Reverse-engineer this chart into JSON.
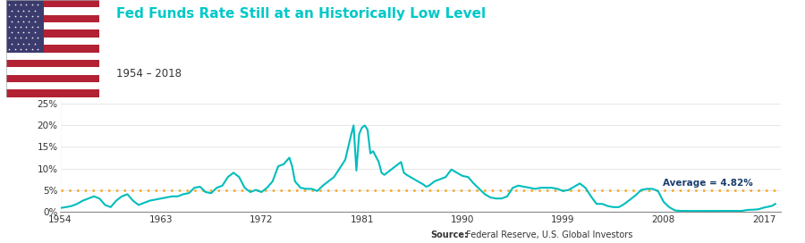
{
  "title": "Fed Funds Rate Still at an Historically Low Level",
  "subtitle": "1954 – 2018",
  "title_color": "#00C8C8",
  "subtitle_color": "#333333",
  "line_color": "#00BDBD",
  "avg_line_color": "#F5A623",
  "avg_value": 4.82,
  "avg_label": "Average = 4.82%",
  "avg_label_color": "#1A3C6E",
  "source_bold": "Source:",
  "source_rest": " Federal Reserve, U.S. Global Investors",
  "yticks": [
    0,
    5,
    10,
    15,
    20,
    25
  ],
  "ytick_labels": [
    "0%",
    "5%",
    "10%",
    "15%",
    "20%",
    "25%"
  ],
  "xticks": [
    1954,
    1963,
    1972,
    1981,
    1990,
    1999,
    2008,
    2017
  ],
  "xlim": [
    1954,
    2018.5
  ],
  "ylim": [
    0,
    26
  ],
  "background_color": "#FFFFFF",
  "line_width": 1.5,
  "fed_funds_data": [
    [
      1954.0,
      0.8
    ],
    [
      1954.5,
      1.0
    ],
    [
      1955.0,
      1.25
    ],
    [
      1955.5,
      1.75
    ],
    [
      1956.0,
      2.5
    ],
    [
      1956.5,
      3.0
    ],
    [
      1957.0,
      3.5
    ],
    [
      1957.5,
      3.0
    ],
    [
      1958.0,
      1.5
    ],
    [
      1958.5,
      1.0
    ],
    [
      1959.0,
      2.5
    ],
    [
      1959.5,
      3.5
    ],
    [
      1960.0,
      4.0
    ],
    [
      1960.5,
      2.5
    ],
    [
      1961.0,
      1.5
    ],
    [
      1961.5,
      2.0
    ],
    [
      1962.0,
      2.5
    ],
    [
      1962.5,
      2.75
    ],
    [
      1963.0,
      3.0
    ],
    [
      1963.5,
      3.25
    ],
    [
      1964.0,
      3.5
    ],
    [
      1964.5,
      3.5
    ],
    [
      1965.0,
      4.0
    ],
    [
      1965.5,
      4.25
    ],
    [
      1966.0,
      5.5
    ],
    [
      1966.5,
      5.75
    ],
    [
      1967.0,
      4.5
    ],
    [
      1967.5,
      4.25
    ],
    [
      1968.0,
      5.5
    ],
    [
      1968.5,
      6.0
    ],
    [
      1969.0,
      8.0
    ],
    [
      1969.5,
      9.0
    ],
    [
      1970.0,
      8.0
    ],
    [
      1970.5,
      5.5
    ],
    [
      1971.0,
      4.5
    ],
    [
      1971.5,
      5.0
    ],
    [
      1972.0,
      4.5
    ],
    [
      1972.5,
      5.5
    ],
    [
      1973.0,
      7.0
    ],
    [
      1973.5,
      10.5
    ],
    [
      1974.0,
      11.0
    ],
    [
      1974.5,
      12.5
    ],
    [
      1974.75,
      10.5
    ],
    [
      1975.0,
      7.0
    ],
    [
      1975.5,
      5.5
    ],
    [
      1976.0,
      5.25
    ],
    [
      1976.5,
      5.25
    ],
    [
      1977.0,
      4.75
    ],
    [
      1977.5,
      6.0
    ],
    [
      1978.0,
      7.0
    ],
    [
      1978.5,
      8.0
    ],
    [
      1979.0,
      10.0
    ],
    [
      1979.5,
      12.0
    ],
    [
      1980.0,
      17.5
    ],
    [
      1980.25,
      20.0
    ],
    [
      1980.5,
      9.5
    ],
    [
      1980.75,
      18.0
    ],
    [
      1981.0,
      19.5
    ],
    [
      1981.25,
      20.0
    ],
    [
      1981.5,
      19.0
    ],
    [
      1981.75,
      13.5
    ],
    [
      1982.0,
      14.0
    ],
    [
      1982.5,
      11.5
    ],
    [
      1982.75,
      9.0
    ],
    [
      1983.0,
      8.5
    ],
    [
      1983.5,
      9.5
    ],
    [
      1984.0,
      10.5
    ],
    [
      1984.5,
      11.5
    ],
    [
      1984.75,
      9.0
    ],
    [
      1985.0,
      8.5
    ],
    [
      1985.5,
      7.75
    ],
    [
      1986.0,
      7.0
    ],
    [
      1986.5,
      6.25
    ],
    [
      1986.75,
      5.75
    ],
    [
      1987.0,
      6.0
    ],
    [
      1987.5,
      7.0
    ],
    [
      1988.0,
      7.5
    ],
    [
      1988.5,
      8.0
    ],
    [
      1989.0,
      9.75
    ],
    [
      1989.5,
      9.0
    ],
    [
      1990.0,
      8.25
    ],
    [
      1990.5,
      8.0
    ],
    [
      1991.0,
      6.5
    ],
    [
      1991.5,
      5.25
    ],
    [
      1992.0,
      4.0
    ],
    [
      1992.5,
      3.25
    ],
    [
      1993.0,
      3.0
    ],
    [
      1993.5,
      3.0
    ],
    [
      1994.0,
      3.5
    ],
    [
      1994.5,
      5.5
    ],
    [
      1995.0,
      6.0
    ],
    [
      1995.5,
      5.75
    ],
    [
      1996.0,
      5.5
    ],
    [
      1996.5,
      5.25
    ],
    [
      1997.0,
      5.5
    ],
    [
      1997.5,
      5.5
    ],
    [
      1998.0,
      5.5
    ],
    [
      1998.5,
      5.25
    ],
    [
      1999.0,
      4.75
    ],
    [
      1999.5,
      5.0
    ],
    [
      2000.0,
      5.75
    ],
    [
      2000.5,
      6.5
    ],
    [
      2001.0,
      5.5
    ],
    [
      2001.5,
      3.5
    ],
    [
      2002.0,
      1.75
    ],
    [
      2002.5,
      1.75
    ],
    [
      2003.0,
      1.25
    ],
    [
      2003.5,
      1.0
    ],
    [
      2004.0,
      1.0
    ],
    [
      2004.5,
      1.75
    ],
    [
      2005.0,
      2.75
    ],
    [
      2005.5,
      3.75
    ],
    [
      2006.0,
      5.0
    ],
    [
      2006.5,
      5.25
    ],
    [
      2007.0,
      5.25
    ],
    [
      2007.5,
      4.75
    ],
    [
      2008.0,
      2.25
    ],
    [
      2008.5,
      1.0
    ],
    [
      2009.0,
      0.25
    ],
    [
      2009.5,
      0.12
    ],
    [
      2010.0,
      0.1
    ],
    [
      2010.5,
      0.1
    ],
    [
      2011.0,
      0.1
    ],
    [
      2011.5,
      0.1
    ],
    [
      2012.0,
      0.1
    ],
    [
      2012.5,
      0.1
    ],
    [
      2013.0,
      0.1
    ],
    [
      2013.5,
      0.1
    ],
    [
      2014.0,
      0.1
    ],
    [
      2014.5,
      0.1
    ],
    [
      2015.0,
      0.12
    ],
    [
      2015.5,
      0.35
    ],
    [
      2016.0,
      0.4
    ],
    [
      2016.5,
      0.5
    ],
    [
      2017.0,
      0.9
    ],
    [
      2017.5,
      1.16
    ],
    [
      2017.75,
      1.33
    ],
    [
      2018.0,
      1.75
    ]
  ]
}
